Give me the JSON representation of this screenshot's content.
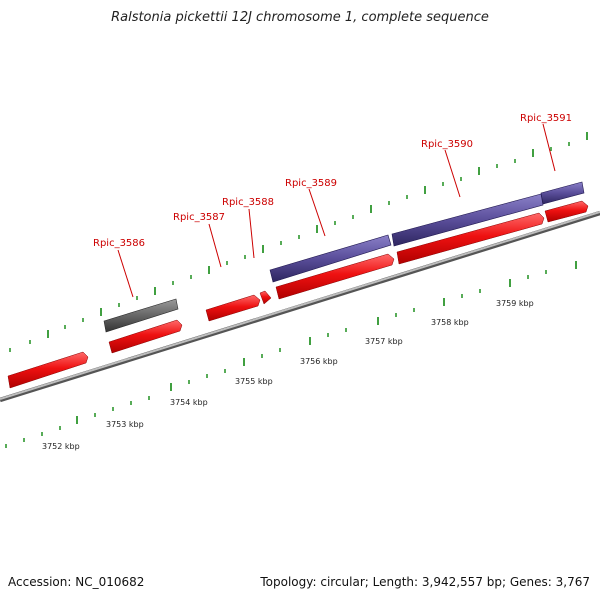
{
  "title": "Ralstonia pickettii 12J chromosome 1, complete sequence",
  "accession": "Accession: NC_010682",
  "topology": "Topology: circular; Length: 3,942,557 bp; Genes: 3,767",
  "gene_labels": [
    "Rpic_3586",
    "Rpic_3587",
    "Rpic_3588",
    "Rpic_3589",
    "Rpic_3590",
    "Rpic_3591"
  ],
  "kbp_labels": [
    "3752 kbp",
    "3753 kbp",
    "3754 kbp",
    "3755 kbp",
    "3756 kbp",
    "3757 kbp",
    "3758 kbp",
    "3759 kbp"
  ],
  "colors": {
    "backbone": "#9a9a9a",
    "cds": "#ee1111",
    "gene_blue": "#5a4e9a",
    "gene_gray": "#666666",
    "tick": "#118811",
    "label": "#cc0000"
  }
}
